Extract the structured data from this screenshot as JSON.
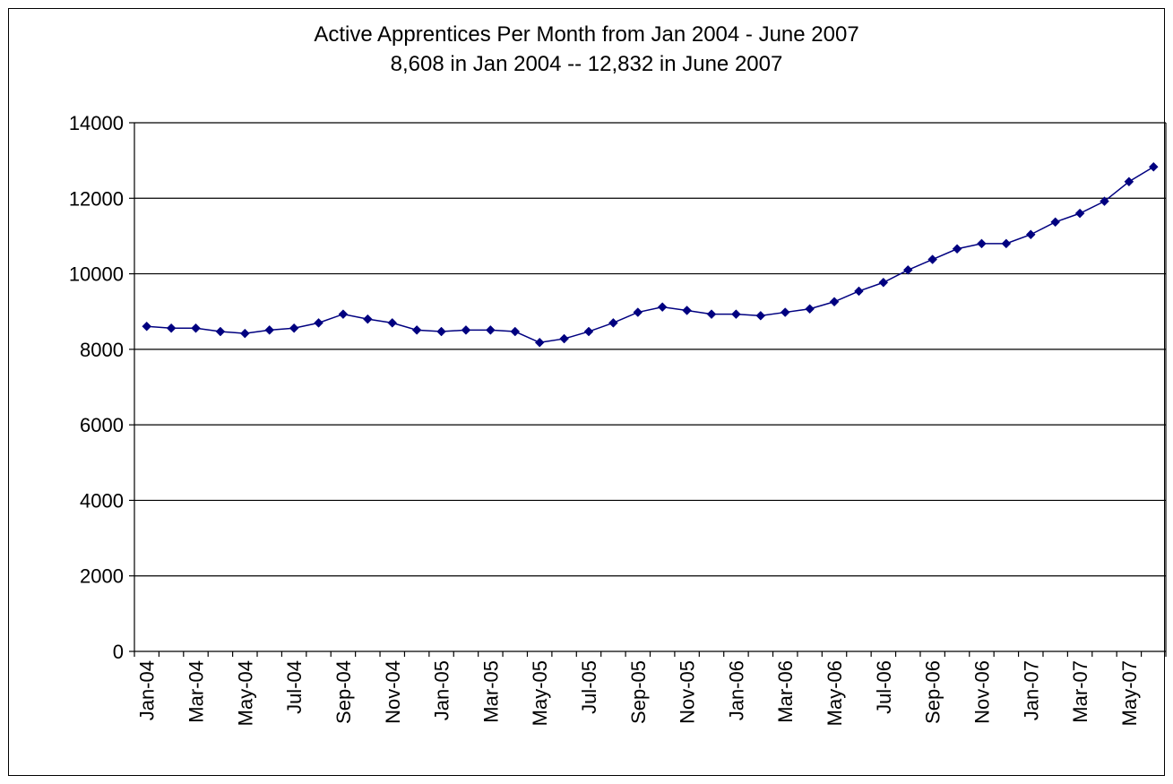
{
  "chart_data": {
    "type": "line",
    "title": "Active Apprentices Per Month from Jan 2004 - June 2007",
    "subtitle": "8,608 in Jan 2004  --  12,832 in June 2007",
    "xlabel": "",
    "ylabel": "",
    "ylim": [
      0,
      14000
    ],
    "yticks": [
      0,
      2000,
      4000,
      6000,
      8000,
      10000,
      12000,
      14000
    ],
    "grid": true,
    "legend": "none",
    "line_color": "#000080",
    "marker": "diamond",
    "x": [
      "Jan-04",
      "Feb-04",
      "Mar-04",
      "Apr-04",
      "May-04",
      "Jun-04",
      "Jul-04",
      "Aug-04",
      "Sep-04",
      "Oct-04",
      "Nov-04",
      "Dec-04",
      "Jan-05",
      "Feb-05",
      "Mar-05",
      "Apr-05",
      "May-05",
      "Jun-05",
      "Jul-05",
      "Aug-05",
      "Sep-05",
      "Oct-05",
      "Nov-05",
      "Dec-05",
      "Jan-06",
      "Feb-06",
      "Mar-06",
      "Apr-06",
      "May-06",
      "Jun-06",
      "Jul-06",
      "Aug-06",
      "Sep-06",
      "Oct-06",
      "Nov-06",
      "Dec-06",
      "Jan-07",
      "Feb-07",
      "Mar-07",
      "Apr-07",
      "May-07",
      "Jun-07"
    ],
    "x_tick_labels": [
      "Jan-04",
      "Mar-04",
      "May-04",
      "Jul-04",
      "Sep-04",
      "Nov-04",
      "Jan-05",
      "Mar-05",
      "May-05",
      "Jul-05",
      "Sep-05",
      "Nov-05",
      "Jan-06",
      "Mar-06",
      "May-06",
      "Jul-06",
      "Sep-06",
      "Nov-06",
      "Jan-07",
      "Mar-07",
      "May-07"
    ],
    "series": [
      {
        "values": [
          8608,
          8560,
          8560,
          8470,
          8420,
          8510,
          8560,
          8700,
          8930,
          8800,
          8700,
          8510,
          8470,
          8510,
          8510,
          8470,
          8180,
          8280,
          8470,
          8700,
          8980,
          9120,
          9030,
          8930,
          8930,
          8890,
          8980,
          9070,
          9260,
          9540,
          9770,
          10100,
          10380,
          10660,
          10800,
          10800,
          11040,
          11370,
          11600,
          11920,
          12440,
          12832
        ]
      }
    ]
  }
}
